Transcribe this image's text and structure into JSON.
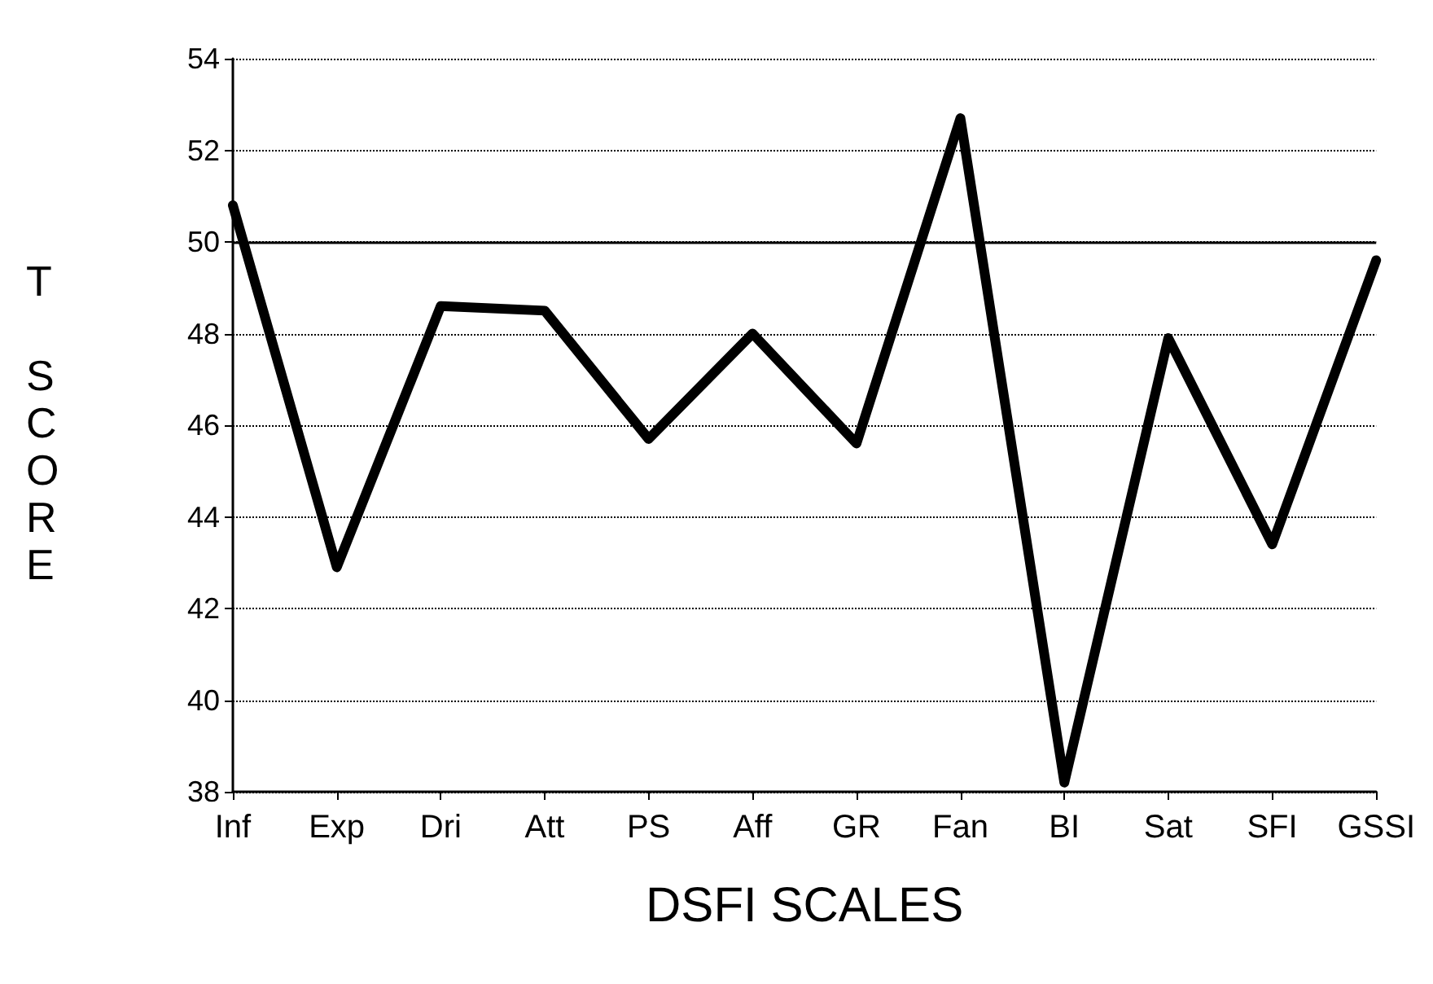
{
  "chart_data": {
    "type": "line",
    "xlabel": "DSFI SCALES",
    "ylabel": "T SCORE",
    "categories": [
      "Inf",
      "Exp",
      "Dri",
      "Att",
      "PS",
      "Aff",
      "GR",
      "Fan",
      "BI",
      "Sat",
      "SFI",
      "GSSI"
    ],
    "series": [
      {
        "color": "#000000",
        "values": [
          50.8,
          42.9,
          48.6,
          48.5,
          45.7,
          48.0,
          45.6,
          52.7,
          38.2,
          47.9,
          43.4,
          49.6
        ]
      }
    ],
    "ylim": [
      38,
      54
    ],
    "yticks": [
      38,
      40,
      42,
      44,
      46,
      48,
      50,
      52,
      54
    ],
    "grid": "y",
    "marker": "none",
    "line_style": "solid",
    "ref_lines": [
      {
        "axis": "y",
        "value": 50,
        "color": "#000000",
        "line_style": "solid"
      }
    ]
  }
}
